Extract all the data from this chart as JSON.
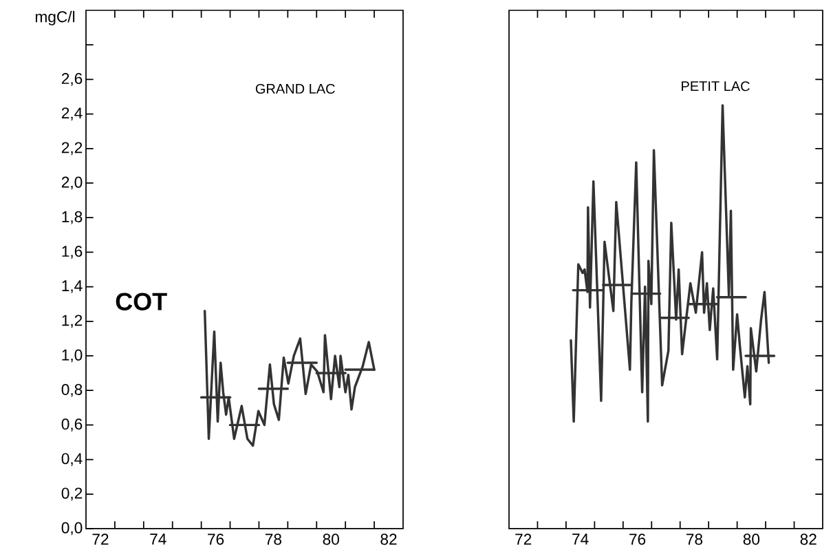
{
  "chart_data": [
    {
      "type": "line",
      "title": "GRAND LAC",
      "ylabel": "mgC/l",
      "annotations": [
        "COT"
      ],
      "xlim": [
        72,
        83
      ],
      "ylim": [
        0,
        3.0
      ],
      "xticks": [
        {
          "value": 72.5,
          "label": "72"
        },
        {
          "value": 73,
          "label": null
        },
        {
          "value": 74,
          "label": null
        },
        {
          "value": 74.5,
          "label": "74"
        },
        {
          "value": 75,
          "label": null
        },
        {
          "value": 76,
          "label": null
        },
        {
          "value": 76.5,
          "label": "76"
        },
        {
          "value": 77,
          "label": null
        },
        {
          "value": 78,
          "label": null
        },
        {
          "value": 78.5,
          "label": "78"
        },
        {
          "value": 79,
          "label": null
        },
        {
          "value": 80,
          "label": null
        },
        {
          "value": 80.5,
          "label": "80"
        },
        {
          "value": 81,
          "label": null
        },
        {
          "value": 82,
          "label": null
        },
        {
          "value": 82.5,
          "label": "82"
        }
      ],
      "yticks": [
        {
          "value": 0,
          "label": "0,0"
        },
        {
          "value": 0.2,
          "label": "0,2"
        },
        {
          "value": 0.4,
          "label": "0,4"
        },
        {
          "value": 0.6,
          "label": "0,6"
        },
        {
          "value": 0.8,
          "label": "0,8"
        },
        {
          "value": 1.0,
          "label": "1,0"
        },
        {
          "value": 1.2,
          "label": "1,2"
        },
        {
          "value": 1.4,
          "label": "1,4"
        },
        {
          "value": 1.6,
          "label": "1,6"
        },
        {
          "value": 1.8,
          "label": "1,8"
        },
        {
          "value": 2.0,
          "label": "2,0"
        },
        {
          "value": 2.2,
          "label": "2,2"
        },
        {
          "value": 2.4,
          "label": "2,4"
        },
        {
          "value": 2.6,
          "label": "2,6"
        },
        {
          "value": 2.8,
          "label": null
        }
      ],
      "marker": "none",
      "line_style": "solid",
      "series": [
        {
          "color": "#333333",
          "x": [
            76.12,
            76.26,
            76.45,
            76.57,
            76.67,
            76.76,
            76.86,
            76.95,
            77.14,
            77.4,
            77.6,
            77.79,
            77.98,
            78.19,
            78.38,
            78.52,
            78.69,
            78.86,
            79.02,
            79.21,
            79.43,
            79.62,
            79.81,
            80.02,
            80.24,
            80.29,
            80.5,
            80.64,
            80.79,
            80.83,
            81.0,
            81.1,
            81.21,
            81.33,
            81.6,
            81.81,
            82.0
          ],
          "values": [
            1.26,
            0.52,
            1.14,
            0.62,
            0.96,
            0.79,
            0.66,
            0.76,
            0.52,
            0.71,
            0.52,
            0.48,
            0.68,
            0.6,
            0.95,
            0.72,
            0.63,
            0.99,
            0.84,
            1.0,
            1.1,
            0.78,
            0.95,
            0.91,
            0.79,
            1.12,
            0.75,
            1.0,
            0.82,
            1.0,
            0.79,
            0.89,
            0.69,
            0.82,
            0.94,
            1.08,
            0.92
          ]
        },
        {
          "color": "#333333",
          "x": [
            76,
            77
          ],
          "values": [
            0.76,
            0.76
          ]
        },
        {
          "color": "#333333",
          "x": [
            77,
            78
          ],
          "values": [
            0.6,
            0.6
          ]
        },
        {
          "color": "#333333",
          "x": [
            78,
            79
          ],
          "values": [
            0.81,
            0.81
          ]
        },
        {
          "color": "#333333",
          "x": [
            79,
            80
          ],
          "values": [
            0.96,
            0.96
          ]
        },
        {
          "color": "#333333",
          "x": [
            80,
            81
          ],
          "values": [
            0.9,
            0.9
          ]
        },
        {
          "color": "#333333",
          "x": [
            81,
            82
          ],
          "values": [
            0.92,
            0.92
          ]
        }
      ]
    },
    {
      "type": "line",
      "title": "PETIT LAC",
      "tick_labels": "x",
      "xlim": [
        72,
        83
      ],
      "ylim": [
        0,
        3.0
      ],
      "xticks": [
        {
          "value": 72.5,
          "label": "72"
        },
        {
          "value": 73,
          "label": null
        },
        {
          "value": 74,
          "label": null
        },
        {
          "value": 74.5,
          "label": "74"
        },
        {
          "value": 75,
          "label": null
        },
        {
          "value": 76,
          "label": null
        },
        {
          "value": 76.5,
          "label": "76"
        },
        {
          "value": 77,
          "label": null
        },
        {
          "value": 78,
          "label": null
        },
        {
          "value": 78.5,
          "label": "78"
        },
        {
          "value": 79,
          "label": null
        },
        {
          "value": 80,
          "label": null
        },
        {
          "value": 80.5,
          "label": "80"
        },
        {
          "value": 81,
          "label": null
        },
        {
          "value": 82,
          "label": null
        },
        {
          "value": 82.5,
          "label": "82"
        }
      ],
      "yticks": [
        {
          "value": 0.2,
          "label": null
        },
        {
          "value": 0.4,
          "label": null
        },
        {
          "value": 0.6,
          "label": null
        },
        {
          "value": 0.8,
          "label": null
        },
        {
          "value": 1.0,
          "label": null
        },
        {
          "value": 1.2,
          "label": null
        },
        {
          "value": 1.4,
          "label": null
        },
        {
          "value": 1.6,
          "label": null
        },
        {
          "value": 1.8,
          "label": null
        },
        {
          "value": 2.0,
          "label": null
        },
        {
          "value": 2.2,
          "label": null
        },
        {
          "value": 2.4,
          "label": null
        },
        {
          "value": 2.6,
          "label": null
        },
        {
          "value": 2.8,
          "label": null
        }
      ],
      "marker": "none",
      "line_style": "solid",
      "series": [
        {
          "color": "#333333",
          "x": [
            74.17,
            74.27,
            74.43,
            74.58,
            74.65,
            74.75,
            74.77,
            74.84,
            74.96,
            75.23,
            75.35,
            75.66,
            75.76,
            76.24,
            76.29,
            76.46,
            76.67,
            76.77,
            76.87,
            76.89,
            76.99,
            77.08,
            77.37,
            77.59,
            77.69,
            77.86,
            77.95,
            78.07,
            78.36,
            78.55,
            78.77,
            78.84,
            78.94,
            79.04,
            79.16,
            79.3,
            79.49,
            79.71,
            79.78,
            79.86,
            80.0,
            80.1,
            80.27,
            80.36,
            80.46,
            80.48,
            80.67,
            80.84,
            80.96,
            81.11
          ],
          "values": [
            1.09,
            0.62,
            1.53,
            1.48,
            1.5,
            1.37,
            1.86,
            1.28,
            2.01,
            0.74,
            1.66,
            1.26,
            1.89,
            0.92,
            1.31,
            2.12,
            0.79,
            1.4,
            0.62,
            1.55,
            1.3,
            2.19,
            0.83,
            1.03,
            1.77,
            1.21,
            1.5,
            1.01,
            1.42,
            1.25,
            1.6,
            1.25,
            1.42,
            1.15,
            1.39,
            0.98,
            2.45,
            1.35,
            1.84,
            0.92,
            1.24,
            1.05,
            0.76,
            0.94,
            0.72,
            1.16,
            0.91,
            1.21,
            1.37,
            0.96
          ]
        },
        {
          "color": "#333333",
          "x": [
            74.25,
            75.3
          ],
          "values": [
            1.38,
            1.38
          ]
        },
        {
          "color": "#333333",
          "x": [
            75.3,
            76.3
          ],
          "values": [
            1.41,
            1.41
          ]
        },
        {
          "color": "#333333",
          "x": [
            76.3,
            77.3
          ],
          "values": [
            1.36,
            1.36
          ]
        },
        {
          "color": "#333333",
          "x": [
            77.3,
            78.3
          ],
          "values": [
            1.22,
            1.22
          ]
        },
        {
          "color": "#333333",
          "x": [
            78.3,
            79.3
          ],
          "values": [
            1.3,
            1.3
          ]
        },
        {
          "color": "#333333",
          "x": [
            79.3,
            80.3
          ],
          "values": [
            1.34,
            1.34
          ]
        },
        {
          "color": "#333333",
          "x": [
            80.3,
            81.3
          ],
          "values": [
            1.0,
            1.0
          ]
        }
      ]
    }
  ]
}
